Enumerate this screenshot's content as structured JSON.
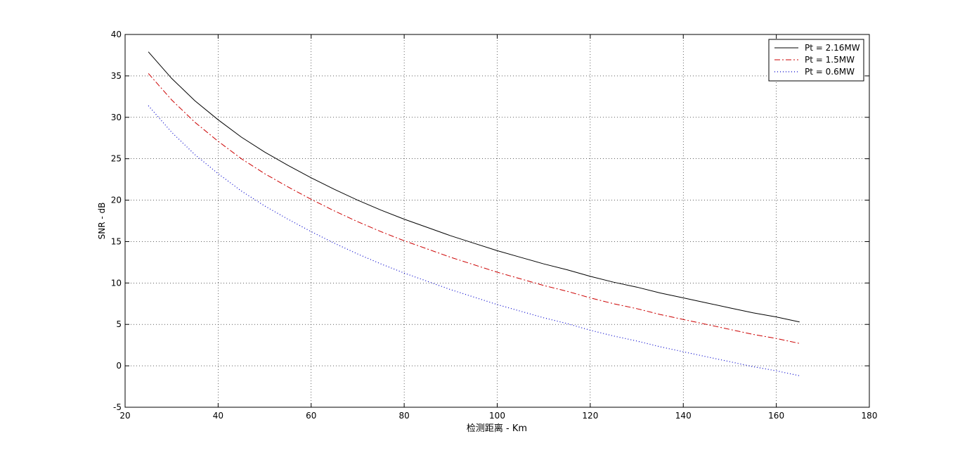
{
  "chart_data": {
    "type": "line",
    "title": "",
    "xlabel": "检测距离 - Km",
    "ylabel": "SNR - dB",
    "xlim": [
      20,
      180
    ],
    "ylim": [
      -5,
      40
    ],
    "xticks": [
      20,
      40,
      60,
      80,
      100,
      120,
      140,
      160,
      180
    ],
    "yticks": [
      -5,
      0,
      5,
      10,
      15,
      20,
      25,
      30,
      35,
      40
    ],
    "grid": true,
    "legend_position": "top-right",
    "x": [
      25,
      30,
      35,
      40,
      45,
      50,
      55,
      60,
      65,
      70,
      75,
      80,
      85,
      90,
      95,
      100,
      105,
      110,
      115,
      120,
      125,
      130,
      135,
      140,
      145,
      150,
      155,
      160,
      165
    ],
    "series": [
      {
        "name": "Pt = 2.16MW",
        "color": "#000000",
        "style": "solid",
        "values": [
          37.9,
          34.7,
          32.0,
          29.7,
          27.6,
          25.8,
          24.2,
          22.7,
          21.3,
          20.0,
          18.8,
          17.7,
          16.7,
          15.7,
          14.8,
          13.9,
          13.1,
          12.3,
          11.6,
          10.8,
          10.1,
          9.5,
          8.8,
          8.2,
          7.6,
          7.0,
          6.4,
          5.9,
          5.3
        ]
      },
      {
        "name": "Pt = 1.5MW",
        "color": "#cc0000",
        "style": "dashdot",
        "values": [
          35.3,
          32.1,
          29.4,
          27.1,
          25.0,
          23.2,
          21.6,
          20.1,
          18.7,
          17.4,
          16.2,
          15.1,
          14.1,
          13.1,
          12.2,
          11.3,
          10.5,
          9.7,
          9.0,
          8.2,
          7.5,
          6.9,
          6.2,
          5.6,
          5.0,
          4.4,
          3.8,
          3.3,
          2.7
        ]
      },
      {
        "name": "Pt = 0.6MW",
        "color": "#0000cc",
        "style": "dotted",
        "values": [
          31.4,
          28.2,
          25.5,
          23.2,
          21.1,
          19.3,
          17.7,
          16.2,
          14.8,
          13.5,
          12.3,
          11.2,
          10.2,
          9.2,
          8.3,
          7.4,
          6.6,
          5.8,
          5.1,
          4.3,
          3.6,
          3.0,
          2.3,
          1.7,
          1.1,
          0.5,
          -0.1,
          -0.6,
          -1.2
        ]
      }
    ]
  }
}
